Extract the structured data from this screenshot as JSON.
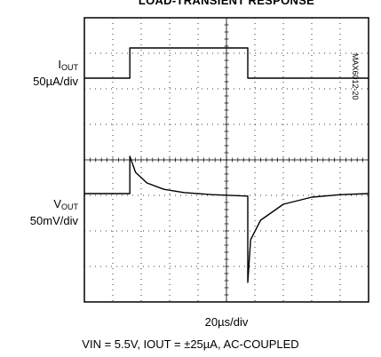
{
  "title": "LOAD-TRANSIENT RESPONSE",
  "figure_code": "MAX6012-20",
  "channels": {
    "iout": {
      "name_main": "I",
      "name_sub": "OUT",
      "scale": "50µA/div"
    },
    "vout": {
      "name_main": "V",
      "name_sub": "OUT",
      "scale": "50mV/div"
    }
  },
  "timebase": "20µs/div",
  "conditions": "VIN = 5.5V, IOUT = ±25µA, AC-COUPLED",
  "chart_data": {
    "type": "line",
    "title": "LOAD-TRANSIENT RESPONSE",
    "xlabel": "20µs/div",
    "grid": true,
    "divisions": {
      "x": 10,
      "y": 8
    },
    "xlim_div": [
      0,
      10
    ],
    "ylim_div": [
      0,
      8
    ],
    "series": [
      {
        "name": "IOUT",
        "unit_per_div": "50µA/div",
        "x": [
          0,
          1.6,
          1.6,
          5.75,
          5.75,
          10
        ],
        "y": [
          6.3,
          6.3,
          7.15,
          7.15,
          6.3,
          6.3
        ]
      },
      {
        "name": "VOUT",
        "unit_per_div": "50mV/div",
        "x": [
          0,
          1.6,
          1.6,
          1.8,
          2.2,
          2.8,
          3.5,
          4.5,
          5.75,
          5.75,
          5.85,
          6.2,
          7.0,
          8.0,
          9.0,
          10
        ],
        "y": [
          3.05,
          3.05,
          4.1,
          3.65,
          3.35,
          3.17,
          3.08,
          3.02,
          2.98,
          0.55,
          1.75,
          2.3,
          2.75,
          2.95,
          3.02,
          3.05
        ]
      }
    ]
  }
}
